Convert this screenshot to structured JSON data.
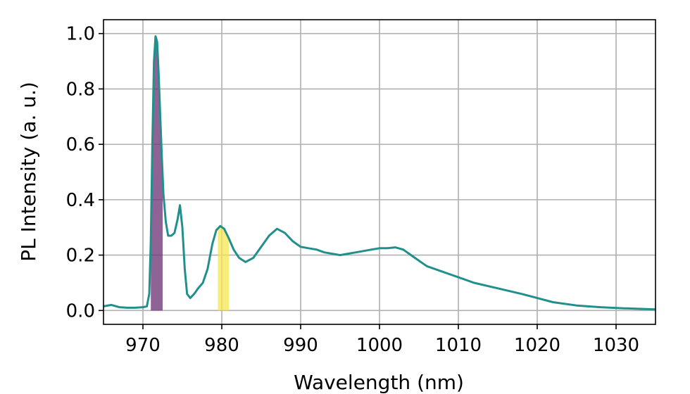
{
  "chart_data": {
    "type": "line",
    "title": "",
    "xlabel": "Wavelength (nm)",
    "ylabel": "PL Intensity (a. u.)",
    "xlim": [
      965,
      1035
    ],
    "ylim": [
      -0.05,
      1.05
    ],
    "grid": true,
    "xticks": [
      970,
      980,
      990,
      1000,
      1010,
      1020,
      1030
    ],
    "xtick_labels": [
      "970",
      "980",
      "990",
      "1000",
      "1010",
      "1020",
      "1030"
    ],
    "yticks": [
      0.0,
      0.2,
      0.4,
      0.6,
      0.8,
      1.0
    ],
    "ytick_labels": [
      "0.0",
      "0.2",
      "0.4",
      "0.6",
      "0.8",
      "1.0"
    ],
    "line_color": "#21908d",
    "series": [
      {
        "x": [
          965,
          966,
          967,
          968,
          969,
          970,
          970.5,
          970.8,
          971.0,
          971.2,
          971.4,
          971.6,
          971.8,
          972.0,
          972.2,
          972.4,
          972.6,
          972.9,
          973.2,
          973.6,
          974.0,
          974.4,
          974.7,
          975.0,
          975.3,
          975.6,
          976.0,
          976.5,
          977.0,
          977.6,
          978.2,
          978.8,
          979.3,
          979.8,
          980.3,
          980.9,
          981.5,
          982.2,
          983.0,
          984.0,
          985.0,
          986.0,
          987.0,
          988.0,
          989.0,
          990.0,
          991.0,
          992.0,
          993.0,
          994.0,
          995.0,
          996.0,
          997.0,
          998.0,
          999.0,
          1000.0,
          1001.0,
          1002.0,
          1003.0,
          1004.0,
          1005.0,
          1006.0,
          1008.0,
          1010.0,
          1012.0,
          1015.0,
          1018.0,
          1020.0,
          1022.0,
          1025.0,
          1028.0,
          1031.0,
          1035.0
        ],
        "y": [
          0.015,
          0.02,
          0.012,
          0.01,
          0.01,
          0.012,
          0.015,
          0.06,
          0.25,
          0.6,
          0.9,
          0.99,
          0.97,
          0.85,
          0.7,
          0.55,
          0.42,
          0.32,
          0.27,
          0.27,
          0.28,
          0.33,
          0.38,
          0.3,
          0.15,
          0.06,
          0.045,
          0.06,
          0.08,
          0.1,
          0.15,
          0.24,
          0.29,
          0.305,
          0.295,
          0.26,
          0.22,
          0.19,
          0.175,
          0.19,
          0.23,
          0.27,
          0.295,
          0.28,
          0.25,
          0.23,
          0.225,
          0.22,
          0.21,
          0.205,
          0.2,
          0.205,
          0.21,
          0.215,
          0.22,
          0.225,
          0.225,
          0.228,
          0.22,
          0.2,
          0.18,
          0.16,
          0.14,
          0.12,
          0.1,
          0.08,
          0.06,
          0.045,
          0.03,
          0.018,
          0.012,
          0.008,
          0.004
        ]
      }
    ],
    "highlights": [
      {
        "x_from": 971.0,
        "x_to": 972.5,
        "color": "#6b2f73",
        "opacity": 0.75
      },
      {
        "x_from": 979.5,
        "x_to": 980.9,
        "color": "#f5e551",
        "opacity": 0.75
      }
    ]
  }
}
